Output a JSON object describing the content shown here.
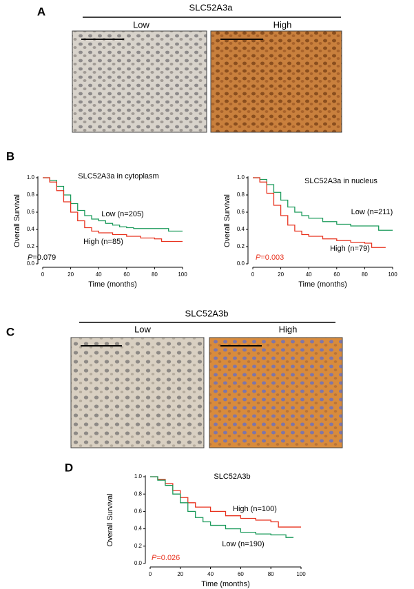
{
  "figure": {
    "panel_a": {
      "letter": "A",
      "title": "SLC52A3a",
      "groups": [
        "Low",
        "High"
      ]
    },
    "panel_b": {
      "letter": "B"
    },
    "panel_c": {
      "letter": "C",
      "title": "SLC52A3b",
      "groups": [
        "Low",
        "High"
      ]
    },
    "panel_d": {
      "letter": "D"
    }
  },
  "chart_data": [
    {
      "type": "line",
      "title": "SLC52A3a  in cytoplasm",
      "x_label": "Time (months)",
      "y_label": "Overall  Survival",
      "p_prefix": "P",
      "p_value": "=0.079",
      "p_color": "#000000",
      "xlim": [
        0,
        100
      ],
      "xticks": [
        0,
        20,
        40,
        60,
        80,
        100
      ],
      "ylim": [
        0,
        1
      ],
      "yticks": [
        {
          "value": 0,
          "label": "0.0"
        },
        0.2,
        0.4,
        0.6,
        0.8,
        {
          "value": 1,
          "label": "1.0"
        }
      ],
      "series": [
        {
          "name": "Low (n=205)",
          "color": "#1a9a5a",
          "x": [
            0,
            5,
            10,
            15,
            20,
            25,
            30,
            35,
            40,
            45,
            50,
            55,
            60,
            65,
            80,
            90,
            100
          ],
          "values": [
            1,
            0.97,
            0.9,
            0.8,
            0.7,
            0.62,
            0.56,
            0.52,
            0.5,
            0.47,
            0.45,
            0.43,
            0.42,
            0.41,
            0.41,
            0.38,
            0.38
          ]
        },
        {
          "name": "High (n=85)",
          "color": "#e8321e",
          "x": [
            0,
            5,
            10,
            15,
            20,
            25,
            30,
            35,
            40,
            50,
            60,
            70,
            80,
            85,
            100
          ],
          "values": [
            1,
            0.95,
            0.85,
            0.72,
            0.6,
            0.5,
            0.42,
            0.38,
            0.36,
            0.34,
            0.32,
            0.3,
            0.29,
            0.26,
            0.26
          ]
        }
      ]
    },
    {
      "type": "line",
      "title": "SLC52A3a  in nucleus",
      "x_label": "Time (months)",
      "y_label": "Overall  Survival",
      "p_prefix": "P",
      "p_value": "=0.003",
      "p_color": "#e8321e",
      "xlim": [
        0,
        100
      ],
      "xticks": [
        0,
        20,
        40,
        60,
        80,
        100
      ],
      "ylim": [
        0,
        1
      ],
      "yticks": [
        {
          "value": 0,
          "label": "0.0"
        },
        0.2,
        0.4,
        0.6,
        0.8,
        {
          "value": 1,
          "label": "1.0"
        }
      ],
      "series": [
        {
          "name": "Low (n=211)",
          "color": "#1a9a5a",
          "x": [
            0,
            5,
            10,
            15,
            20,
            25,
            30,
            35,
            40,
            50,
            60,
            70,
            80,
            90,
            100
          ],
          "values": [
            1,
            0.98,
            0.92,
            0.83,
            0.74,
            0.66,
            0.6,
            0.56,
            0.53,
            0.49,
            0.46,
            0.44,
            0.44,
            0.39,
            0.39
          ]
        },
        {
          "name": "High (n=79)",
          "color": "#e8321e",
          "x": [
            0,
            5,
            10,
            15,
            20,
            25,
            30,
            35,
            40,
            50,
            60,
            70,
            80,
            85,
            95
          ],
          "values": [
            1,
            0.95,
            0.82,
            0.68,
            0.56,
            0.45,
            0.38,
            0.34,
            0.32,
            0.29,
            0.27,
            0.25,
            0.24,
            0.19,
            0.19
          ]
        }
      ]
    },
    {
      "type": "line",
      "title": "SLC52A3b",
      "x_label": "Time (months)",
      "y_label": "Overall  Survival",
      "p_prefix": "P",
      "p_value": "=0.026",
      "p_color": "#e8321e",
      "xlim": [
        0,
        100
      ],
      "xticks": [
        0,
        20,
        40,
        60,
        80,
        100
      ],
      "ylim": [
        0,
        1
      ],
      "yticks": [
        {
          "value": 0,
          "label": "0.0"
        },
        0.2,
        0.4,
        0.6,
        0.8,
        {
          "value": 1,
          "label": "1.0"
        }
      ],
      "series": [
        {
          "name": "High (n=100)",
          "color": "#e8321e",
          "x": [
            0,
            5,
            10,
            15,
            20,
            25,
            30,
            40,
            50,
            60,
            70,
            80,
            85,
            100
          ],
          "values": [
            1,
            0.97,
            0.92,
            0.84,
            0.76,
            0.7,
            0.65,
            0.6,
            0.55,
            0.52,
            0.5,
            0.48,
            0.42,
            0.42
          ]
        },
        {
          "name": "Low (n=190)",
          "color": "#1a9a5a",
          "x": [
            0,
            5,
            10,
            15,
            20,
            25,
            30,
            35,
            40,
            50,
            60,
            70,
            80,
            90,
            95
          ],
          "values": [
            1,
            0.96,
            0.9,
            0.8,
            0.7,
            0.6,
            0.53,
            0.48,
            0.44,
            0.4,
            0.36,
            0.34,
            0.33,
            0.3,
            0.3
          ]
        }
      ]
    }
  ]
}
